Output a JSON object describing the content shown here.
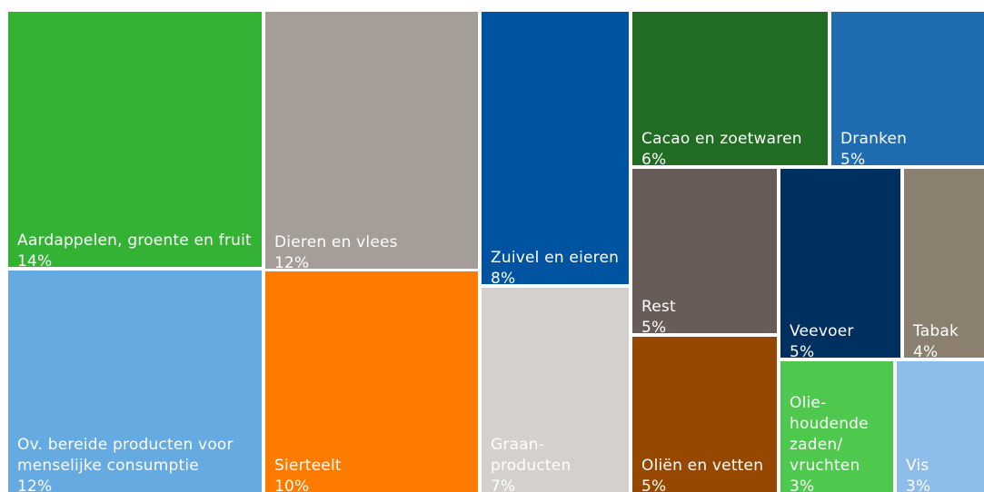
{
  "chart_data": {
    "type": "treemap",
    "categories": [
      "Aardappelen, groente en fruit",
      "Ov. bereide producten voor menselijke consumptie",
      "Dieren en vlees",
      "Sierteelt",
      "Zuivel en eieren",
      "Graan-producten",
      "Cacao en zoetwaren",
      "Dranken",
      "Rest",
      "Oliën en vetten",
      "Veevoer",
      "Tabak",
      "Olie-houdende zaden/ vruchten",
      "Vis"
    ],
    "values": [
      14,
      12,
      12,
      10,
      8,
      7,
      6,
      5,
      5,
      5,
      5,
      4,
      3,
      3
    ],
    "value_labels": [
      "14%",
      "12%",
      "12%",
      "10%",
      "8%",
      "7%",
      "6%",
      "5%",
      "5%",
      "5%",
      "5%",
      "4%",
      "3%",
      "3%"
    ],
    "colors": [
      "#33b233",
      "#66aae2",
      "#a59d98",
      "#ff7b00",
      "#0053a0",
      "#d4d1cc",
      "#216d24",
      "#1f6db0",
      "#675c58",
      "#974800",
      "#00305f",
      "#8b8070",
      "#4ec94e",
      "#8dbde8"
    ]
  }
}
